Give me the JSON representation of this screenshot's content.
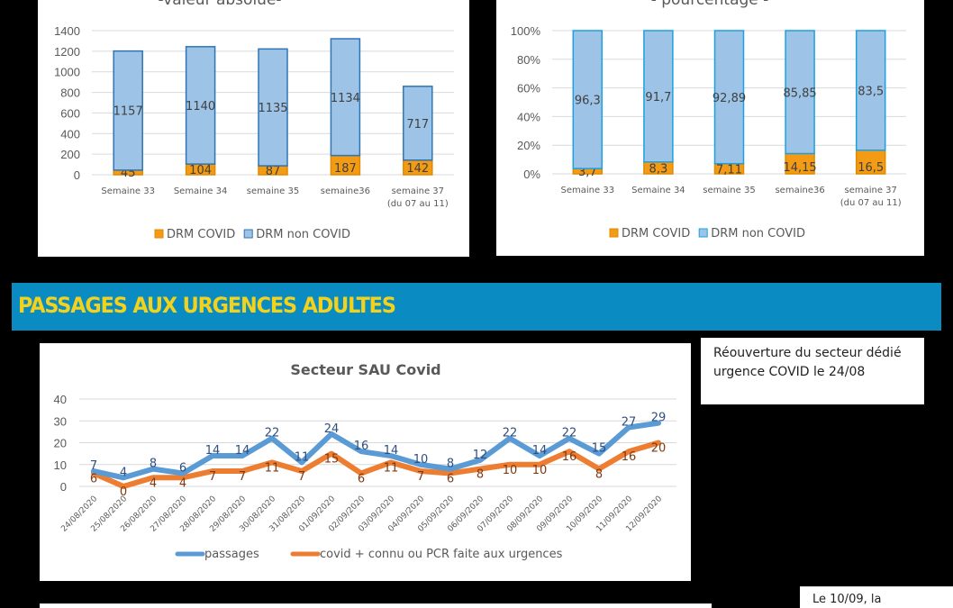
{
  "chart_data": [
    {
      "type": "bar",
      "stacked": true,
      "title": "-valeur absolue-",
      "categories": [
        "Semaine 33",
        "Semaine 34",
        "semaine 35",
        "semaine36",
        "semaine 37 (du 07 au 11)"
      ],
      "category_lines": [
        [
          "Semaine 33"
        ],
        [
          "Semaine 34"
        ],
        [
          "semaine 35"
        ],
        [
          "semaine36"
        ],
        [
          "semaine 37",
          "(du 07 au 11)"
        ]
      ],
      "series": [
        {
          "name": "DRM COVID",
          "color": "#f39b14",
          "values": [
            45,
            104,
            87,
            187,
            142
          ]
        },
        {
          "name": "DRM non COVID",
          "color": "#9dc3e6",
          "border": "#2e75b6",
          "values": [
            1157,
            1140,
            1135,
            1134,
            717
          ]
        }
      ],
      "yticks": [
        "0",
        "200",
        "400",
        "600",
        "800",
        "1000",
        "1200",
        "1400"
      ],
      "ylim": [
        0,
        1400
      ],
      "grid": true,
      "legend": "bottom"
    },
    {
      "type": "bar",
      "stacked": true,
      "title": "- pourcentage -",
      "categories": [
        "Semaine 33",
        "Semaine 34",
        "semaine 35",
        "semaine36",
        "semaine 37 (du 07 au 11)"
      ],
      "category_lines": [
        [
          "Semaine 33"
        ],
        [
          "Semaine 34"
        ],
        [
          "semaine 35"
        ],
        [
          "semaine36"
        ],
        [
          "semaine 37",
          "(du 07 au 11)"
        ]
      ],
      "series": [
        {
          "name": "DRM COVID",
          "color": "#f39b14",
          "values": [
            3.7,
            8.3,
            7.11,
            14.15,
            16.5
          ],
          "labels": [
            "3,7",
            "8,3",
            "7,11",
            "14,15",
            "16,5"
          ]
        },
        {
          "name": "DRM non COVID",
          "color": "#9dc3e6",
          "border": "#1ba1e2",
          "values": [
            96.3,
            91.7,
            92.89,
            85.85,
            83.5
          ],
          "labels": [
            "96,3",
            "91,7",
            "92,89",
            "85,85",
            "83,5"
          ]
        }
      ],
      "yticks": [
        "0%",
        "20%",
        "40%",
        "60%",
        "80%",
        "100%"
      ],
      "ylim": [
        0,
        100
      ],
      "grid": true,
      "legend": "bottom"
    },
    {
      "type": "line",
      "title": "Secteur SAU Covid",
      "x": [
        "24/08/2020",
        "25/08/2020",
        "26/08/2020",
        "27/08/2020",
        "28/08/2020",
        "29/08/2020",
        "30/08/2020",
        "31/08/2020",
        "01/09/2020",
        "02/09/2020",
        "03/09/2020",
        "04/09/2020",
        "05/09/2020",
        "06/09/2020",
        "07/09/2020",
        "08/09/2020",
        "09/09/2020",
        "10/09/2020",
        "11/09/2020",
        "12/09/2020"
      ],
      "series": [
        {
          "name": "passages",
          "color": "#5b9bd5",
          "label_color": "#2f4f7f",
          "values": [
            7,
            4,
            8,
            6,
            14,
            14,
            22,
            11,
            24,
            16,
            14,
            10,
            8,
            12,
            22,
            14,
            22,
            15,
            27,
            29
          ]
        },
        {
          "name": "covid + connu ou PCR faite aux urgences",
          "color": "#ed7d31",
          "label_color": "#7f3a14",
          "values": [
            6,
            0,
            4,
            4,
            7,
            7,
            11,
            7,
            15,
            6,
            11,
            7,
            6,
            8,
            10,
            10,
            16,
            8,
            16,
            20
          ]
        }
      ],
      "yticks": [
        "0",
        "10",
        "20",
        "30",
        "40"
      ],
      "ylim": [
        0,
        40
      ],
      "grid": true,
      "legend": "bottom"
    }
  ],
  "banner": {
    "title": "PASSAGES AUX URGENCES ADULTES",
    "color": "#0a8cc2",
    "text_color": "#f2d21c"
  },
  "notes": {
    "reopening": "Réouverture du secteur dédié urgence COVID le 24/08",
    "bottom": "Le 10/09, la"
  }
}
